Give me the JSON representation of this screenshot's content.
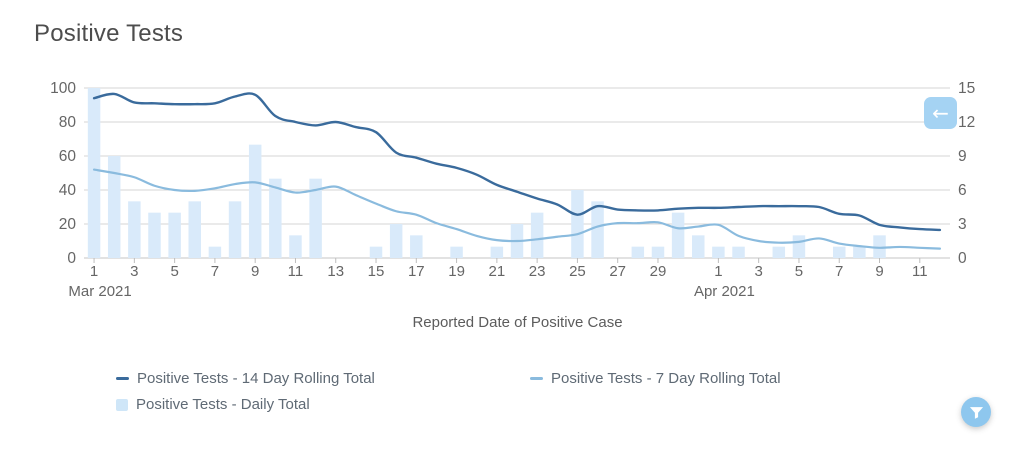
{
  "title": "Positive Tests",
  "x_axis_title": "Reported Date of Positive Case",
  "legend": {
    "items": [
      {
        "label": "Positive Tests - 14 Day Rolling Total",
        "swatch": "line",
        "color": "#3a6b9c"
      },
      {
        "label": "Positive Tests - 7 Day Rolling Total",
        "swatch": "line",
        "color": "#8abbde"
      },
      {
        "label": "Positive Tests - Daily Total",
        "swatch": "square",
        "color": "#cfe6f8"
      }
    ]
  },
  "buttons": {
    "collapse_arrow": "←",
    "filter_icon": "funnel"
  },
  "colors": {
    "line_14day": "#3a6b9c",
    "line_7day": "#8abbde",
    "bar_daily": "#d9eafa",
    "grid": "#d6d6d6",
    "axis_zero_line": "#c6c6c6",
    "tick_mark": "#bdbdbd",
    "axis_text": "#666666",
    "arrow_button_bg": "#a5d3f3",
    "filter_button_bg": "#8ec7ee"
  },
  "chart_data": {
    "type": "combo: bar + 2 lines",
    "title": "Positive Tests",
    "xlabel": "Reported Date of Positive Case",
    "x_unit": "day",
    "date_range": "Mar 1 2021 - Apr 12 2021",
    "n_days": 43,
    "grid": "horizontal only",
    "left_axis": {
      "min": 0,
      "max": 100,
      "ticks": [
        0,
        20,
        40,
        60,
        80,
        100
      ]
    },
    "right_axis": {
      "min": 0,
      "max": 15,
      "ticks": [
        0,
        3,
        6,
        9,
        12,
        15
      ]
    },
    "x_tick_labels": [
      {
        "i": 0,
        "t": "1"
      },
      {
        "i": 2,
        "t": "3"
      },
      {
        "i": 4,
        "t": "5"
      },
      {
        "i": 6,
        "t": "7"
      },
      {
        "i": 8,
        "t": "9"
      },
      {
        "i": 10,
        "t": "11"
      },
      {
        "i": 12,
        "t": "13"
      },
      {
        "i": 14,
        "t": "15"
      },
      {
        "i": 16,
        "t": "17"
      },
      {
        "i": 18,
        "t": "19"
      },
      {
        "i": 20,
        "t": "21"
      },
      {
        "i": 22,
        "t": "23"
      },
      {
        "i": 24,
        "t": "25"
      },
      {
        "i": 26,
        "t": "27"
      },
      {
        "i": 28,
        "t": "29"
      },
      {
        "i": 31,
        "t": "1"
      },
      {
        "i": 33,
        "t": "3"
      },
      {
        "i": 35,
        "t": "5"
      },
      {
        "i": 37,
        "t": "7"
      },
      {
        "i": 39,
        "t": "9"
      },
      {
        "i": 41,
        "t": "11"
      }
    ],
    "month_labels": [
      {
        "i": 0,
        "t": "Mar 2021"
      },
      {
        "i": 31,
        "t": "Apr 2021"
      }
    ],
    "series": [
      {
        "name": "Positive Tests - 14 Day Rolling Total",
        "type": "line",
        "axis": "left",
        "color": "#3a6b9c",
        "width": 2.4,
        "values": [
          94,
          96.5,
          91.5,
          91,
          90.5,
          90.5,
          91,
          95,
          96,
          83.5,
          80,
          78,
          80,
          77,
          74,
          62,
          59,
          55.5,
          53,
          49,
          43,
          39,
          35,
          31.5,
          25.5,
          30.5,
          28.5,
          28,
          28,
          29,
          29.5,
          29.5,
          30,
          30.5,
          30.5,
          30.5,
          30,
          26,
          25,
          19.5,
          18,
          17,
          16.5
        ]
      },
      {
        "name": "Positive Tests - 7 Day Rolling Total",
        "type": "line",
        "axis": "left",
        "color": "#8abbde",
        "width": 2.2,
        "values": [
          52,
          50,
          47.5,
          42.5,
          40,
          39.5,
          41,
          43.5,
          44.5,
          41.5,
          38.5,
          40,
          42,
          37,
          32,
          27.5,
          25.5,
          20.5,
          17,
          13,
          10.5,
          10,
          11,
          12.5,
          14,
          18.5,
          20.5,
          20.5,
          21,
          17.5,
          18.5,
          19.5,
          13,
          10,
          9,
          9.5,
          11.5,
          8.5,
          7,
          6,
          6.5,
          6,
          5.5
        ]
      },
      {
        "name": "Positive Tests - Daily Total",
        "type": "bar",
        "axis": "right",
        "color": "#d9eafa",
        "values": [
          15,
          9,
          5,
          4,
          4,
          5,
          1,
          5,
          10,
          7,
          2,
          7,
          0,
          0,
          1,
          3,
          2,
          0,
          1,
          0,
          1,
          3,
          4,
          0,
          6,
          5,
          0,
          1,
          1,
          4,
          2,
          1,
          1,
          0,
          1,
          2,
          0,
          1,
          1,
          2,
          0,
          0,
          0
        ]
      }
    ]
  }
}
